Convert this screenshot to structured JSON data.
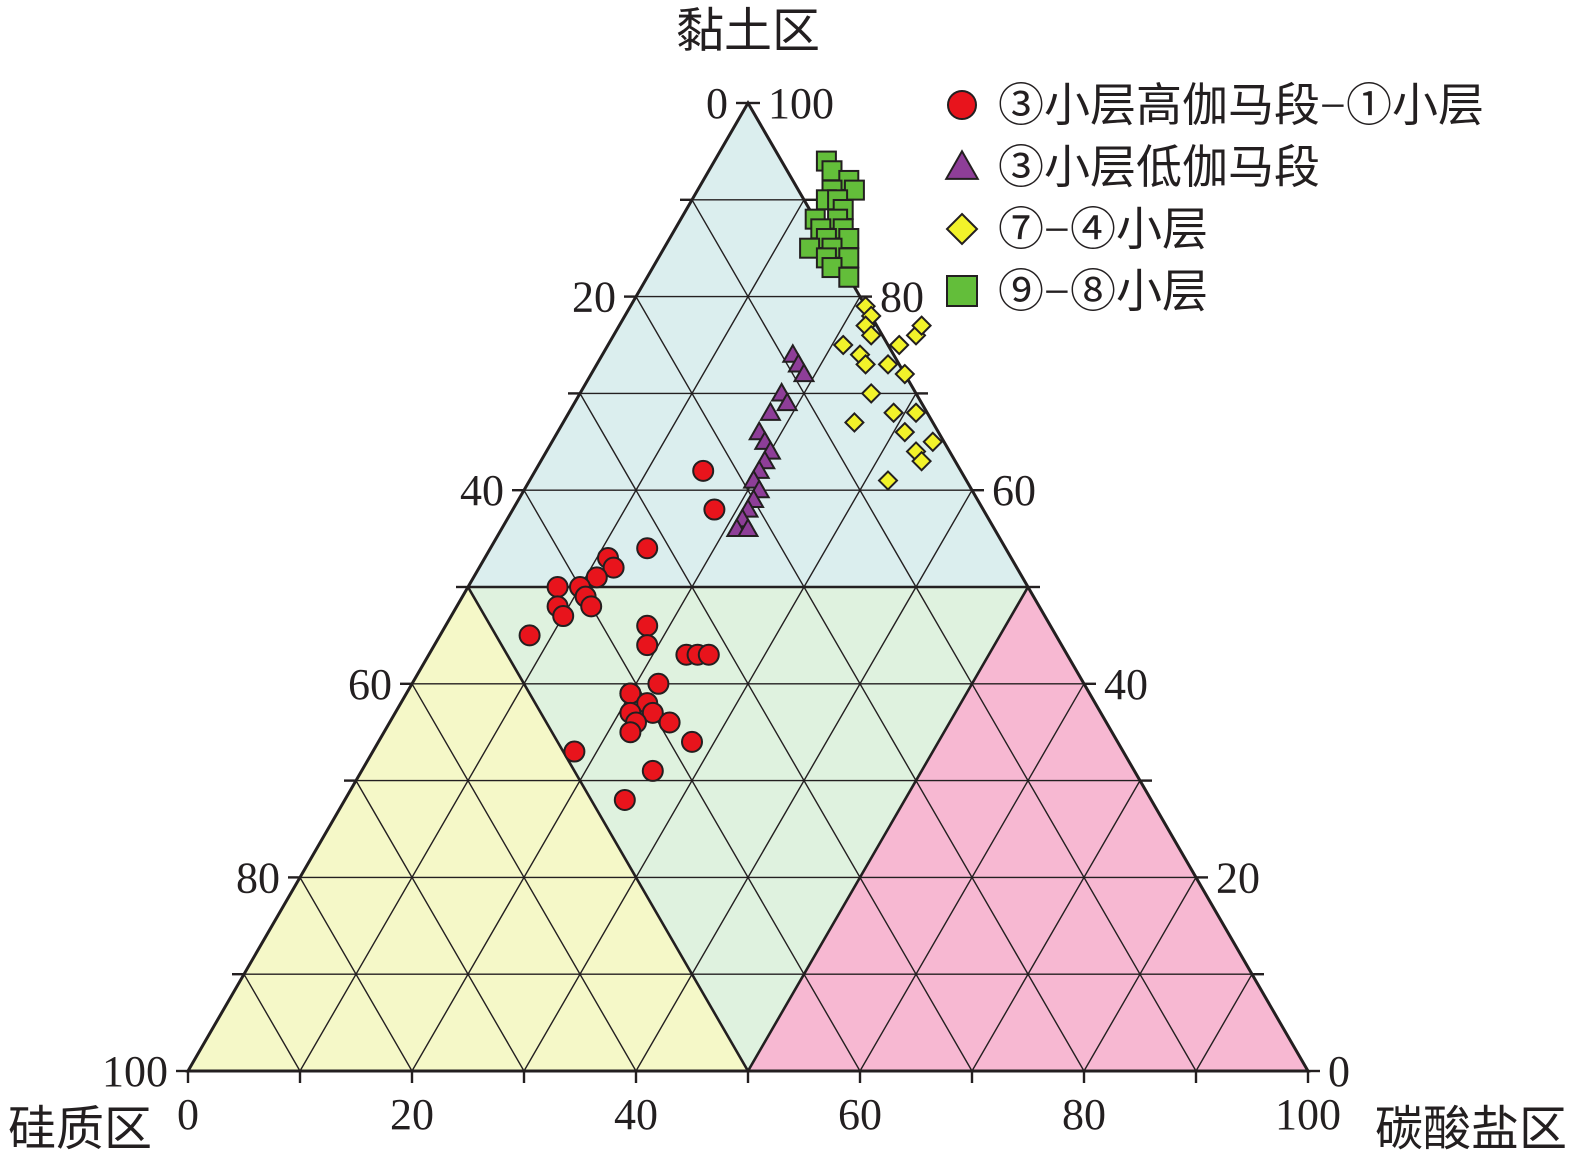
{
  "chart_data": {
    "type": "scatter",
    "subtype": "ternary",
    "vertices": {
      "top": "黏土区",
      "bottom_left": "硅质区",
      "bottom_right": "碳酸盐区"
    },
    "axis_ticks": [
      "0",
      "20",
      "40",
      "60",
      "80",
      "100"
    ],
    "bottom_axis_ticks": [
      "0",
      "20",
      "40",
      "60",
      "80",
      "100"
    ],
    "left_axis_ticks": [
      "100",
      "80",
      "60",
      "40",
      "20",
      "0"
    ],
    "right_axis_ticks": [
      "0",
      "20",
      "40",
      "60",
      "80",
      "100"
    ],
    "grid": true,
    "grid_step": 10,
    "regions": [
      {
        "name": "clay",
        "color": "#dbeeee",
        "clay_min": 50
      },
      {
        "name": "siliceous",
        "color": "#f5f8c8",
        "silica_min": 50
      },
      {
        "name": "mixed",
        "color": "#dff2df"
      },
      {
        "name": "carbonate",
        "color": "#f7b8d2",
        "carbonate_min": 50
      }
    ],
    "legend_position": "top-right",
    "units": "percent",
    "point_format": "[clay, carbonate] in %, silica = 100 - clay - carbonate",
    "series": [
      {
        "name": "③小层高伽马段−①小层",
        "marker": "circle",
        "color": "#e8141c",
        "points": [
          [
            62,
            15
          ],
          [
            58,
            18
          ],
          [
            54,
            14
          ],
          [
            53,
            11
          ],
          [
            52,
            12
          ],
          [
            51,
            11
          ],
          [
            50,
            8
          ],
          [
            50,
            10
          ],
          [
            49,
            11
          ],
          [
            48,
            12
          ],
          [
            48,
            9
          ],
          [
            47,
            10
          ],
          [
            46,
            18
          ],
          [
            45,
            8
          ],
          [
            44,
            19
          ],
          [
            43,
            23
          ],
          [
            43,
            24
          ],
          [
            43,
            25
          ],
          [
            40,
            22
          ],
          [
            39,
            20
          ],
          [
            39,
            20
          ],
          [
            38,
            22
          ],
          [
            37,
            21
          ],
          [
            37,
            23
          ],
          [
            36,
            22
          ],
          [
            36,
            25
          ],
          [
            35,
            22
          ],
          [
            34,
            28
          ],
          [
            33,
            18
          ],
          [
            31,
            26
          ],
          [
            28,
            25
          ]
        ]
      },
      {
        "name": "③小层低伽马段",
        "marker": "triangle",
        "color": "#8e3e98",
        "points": [
          [
            74,
            17
          ],
          [
            73,
            18
          ],
          [
            72,
            19
          ],
          [
            70,
            18
          ],
          [
            69,
            19
          ],
          [
            68,
            18
          ],
          [
            66,
            18
          ],
          [
            65,
            19
          ],
          [
            64,
            20
          ],
          [
            63,
            20
          ],
          [
            62,
            20
          ],
          [
            61,
            20
          ],
          [
            60,
            21
          ],
          [
            59,
            21
          ],
          [
            58,
            21
          ],
          [
            57,
            21
          ],
          [
            56,
            21
          ],
          [
            56,
            22
          ]
        ]
      },
      {
        "name": "⑦−④小层",
        "marker": "diamond",
        "color": "#f2f22a",
        "points": [
          [
            79,
            21
          ],
          [
            78,
            22
          ],
          [
            77,
            22
          ],
          [
            76,
            23
          ],
          [
            75,
            21
          ],
          [
            74,
            23
          ],
          [
            76,
            27
          ],
          [
            75,
            26
          ],
          [
            77,
            27
          ],
          [
            73,
            24
          ],
          [
            73,
            26
          ],
          [
            72,
            28
          ],
          [
            70,
            26
          ],
          [
            67,
            26
          ],
          [
            68,
            29
          ],
          [
            68,
            31
          ],
          [
            66,
            31
          ],
          [
            65,
            34
          ],
          [
            64,
            33
          ],
          [
            63,
            34
          ],
          [
            61,
            32
          ]
        ]
      },
      {
        "name": "⑨−⑧小层",
        "marker": "square",
        "color": "#63be3a",
        "points": [
          [
            94,
            10
          ],
          [
            93,
            11
          ],
          [
            92,
            13
          ],
          [
            91,
            12
          ],
          [
            91,
            14
          ],
          [
            90,
            12
          ],
          [
            90,
            13
          ],
          [
            89,
            14
          ],
          [
            88,
            12
          ],
          [
            88,
            14
          ],
          [
            87,
            13
          ],
          [
            87,
            15
          ],
          [
            86,
            14
          ],
          [
            86,
            16
          ],
          [
            85,
            13
          ],
          [
            85,
            15
          ],
          [
            84,
            15
          ],
          [
            84,
            17
          ],
          [
            83,
            16
          ],
          [
            82,
            18
          ]
        ]
      }
    ]
  }
}
